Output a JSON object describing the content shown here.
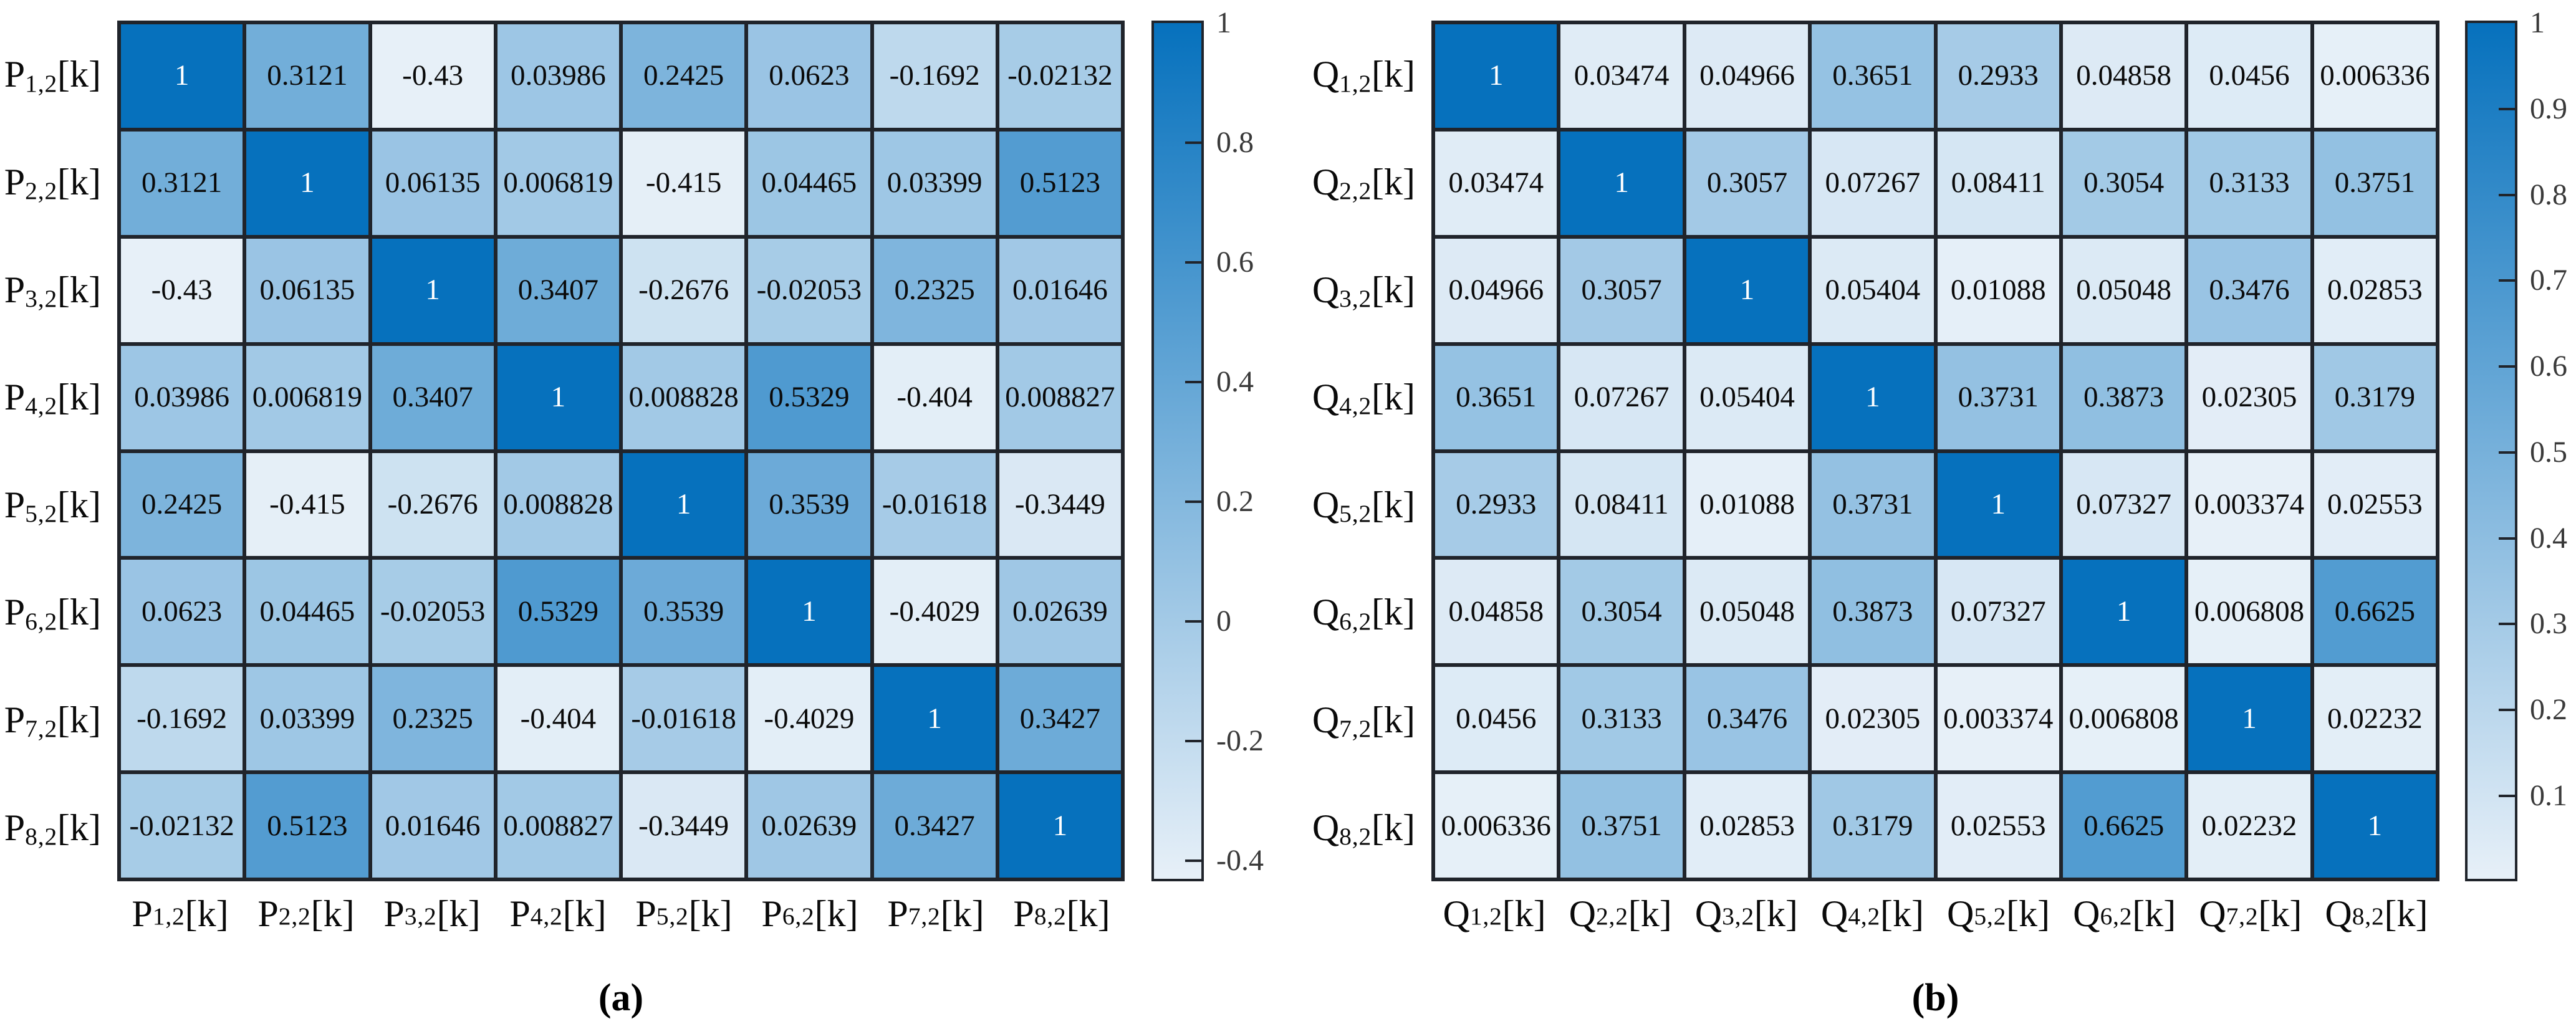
{
  "chart_data": [
    {
      "type": "heatmap",
      "panel": "a",
      "caption": "(a)",
      "axis_labels": [
        "P_{1,2}[k]",
        "P_{2,2}[k]",
        "P_{3,2}[k]",
        "P_{4,2}[k]",
        "P_{5,2}[k]",
        "P_{6,2}[k]",
        "P_{7,2}[k]",
        "P_{8,2}[k]"
      ],
      "values": [
        [
          "1",
          "0.3121",
          "-0.43",
          "0.03986",
          "0.2425",
          "0.0623",
          "-0.1692",
          "-0.02132"
        ],
        [
          "0.3121",
          "1",
          "0.06135",
          "0.006819",
          "-0.415",
          "0.04465",
          "0.03399",
          "0.5123"
        ],
        [
          "-0.43",
          "0.06135",
          "1",
          "0.3407",
          "-0.2676",
          "-0.02053",
          "0.2325",
          "0.01646"
        ],
        [
          "0.03986",
          "0.006819",
          "0.3407",
          "1",
          "0.008828",
          "0.5329",
          "-0.404",
          "0.008827"
        ],
        [
          "0.2425",
          "-0.415",
          "-0.2676",
          "0.008828",
          "1",
          "0.3539",
          "-0.01618",
          "-0.3449"
        ],
        [
          "0.0623",
          "0.04465",
          "-0.02053",
          "0.5329",
          "0.3539",
          "1",
          "-0.4029",
          "0.02639"
        ],
        [
          "-0.1692",
          "0.03399",
          "0.2325",
          "-0.404",
          "-0.01618",
          "-0.4029",
          "1",
          "0.3427"
        ],
        [
          "-0.02132",
          "0.5123",
          "0.01646",
          "0.008827",
          "-0.3449",
          "0.02639",
          "0.3427",
          "1"
        ]
      ],
      "colors": {
        "low": "#E7F0F8",
        "high": "#0671BD"
      },
      "colorbar": {
        "vmin": -0.43,
        "vmax": 1,
        "ticks": [
          {
            "label": "1",
            "value": 1
          },
          {
            "label": "0.8",
            "value": 0.8
          },
          {
            "label": "0.6",
            "value": 0.6
          },
          {
            "label": "0.4",
            "value": 0.4
          },
          {
            "label": "0.2",
            "value": 0.2
          },
          {
            "label": "0",
            "value": 0
          },
          {
            "label": "-0.2",
            "value": -0.2
          },
          {
            "label": "-0.4",
            "value": -0.4
          }
        ]
      }
    },
    {
      "type": "heatmap",
      "panel": "b",
      "caption": "(b)",
      "axis_labels": [
        "Q_{1,2}[k]",
        "Q_{2,2}[k]",
        "Q_{3,2}[k]",
        "Q_{4,2}[k]",
        "Q_{5,2}[k]",
        "Q_{6,2}[k]",
        "Q_{7,2}[k]",
        "Q_{8,2}[k]"
      ],
      "values": [
        [
          "1",
          "0.03474",
          "0.04966",
          "0.3651",
          "0.2933",
          "0.04858",
          "0.0456",
          "0.006336"
        ],
        [
          "0.03474",
          "1",
          "0.3057",
          "0.07267",
          "0.08411",
          "0.3054",
          "0.3133",
          "0.3751"
        ],
        [
          "0.04966",
          "0.3057",
          "1",
          "0.05404",
          "0.01088",
          "0.05048",
          "0.3476",
          "0.02853"
        ],
        [
          "0.3651",
          "0.07267",
          "0.05404",
          "1",
          "0.3731",
          "0.3873",
          "0.02305",
          "0.3179"
        ],
        [
          "0.2933",
          "0.08411",
          "0.01088",
          "0.3731",
          "1",
          "0.07327",
          "0.003374",
          "0.02553"
        ],
        [
          "0.04858",
          "0.3054",
          "0.05048",
          "0.3873",
          "0.07327",
          "1",
          "0.006808",
          "0.6625"
        ],
        [
          "0.0456",
          "0.3133",
          "0.3476",
          "0.02305",
          "0.003374",
          "0.006808",
          "1",
          "0.02232"
        ],
        [
          "0.006336",
          "0.3751",
          "0.02853",
          "0.3179",
          "0.02553",
          "0.6625",
          "0.02232",
          "1"
        ]
      ],
      "colors": {
        "low": "#E7F0F8",
        "high": "#0671BD"
      },
      "colorbar": {
        "vmin": 0.003374,
        "vmax": 1,
        "ticks": [
          {
            "label": "1",
            "value": 1
          },
          {
            "label": "0.9",
            "value": 0.9
          },
          {
            "label": "0.8",
            "value": 0.8
          },
          {
            "label": "0.7",
            "value": 0.7
          },
          {
            "label": "0.6",
            "value": 0.6
          },
          {
            "label": "0.5",
            "value": 0.5
          },
          {
            "label": "0.4",
            "value": 0.4
          },
          {
            "label": "0.3",
            "value": 0.3
          },
          {
            "label": "0.2",
            "value": 0.2
          },
          {
            "label": "0.1",
            "value": 0.1
          }
        ]
      }
    }
  ]
}
